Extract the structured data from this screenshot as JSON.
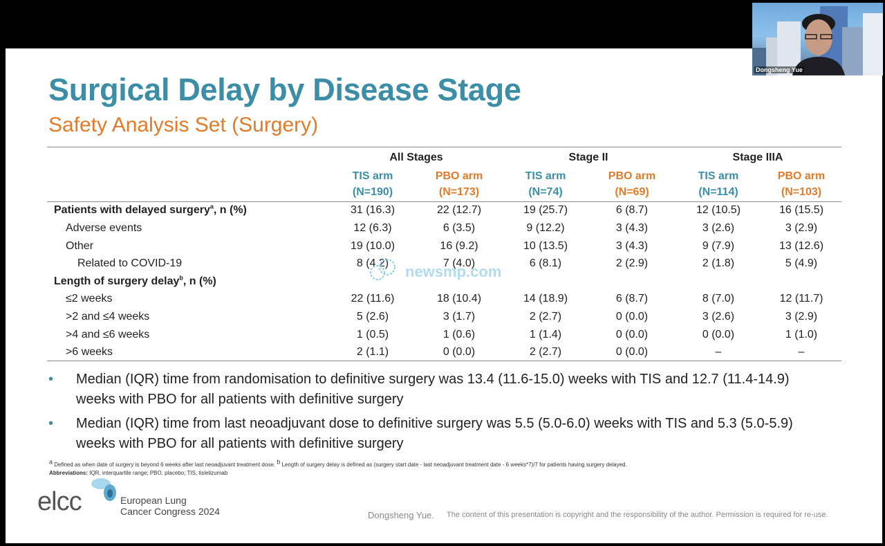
{
  "slide": {
    "title": "Surgical Delay by Disease Stage",
    "subtitle": "Safety Analysis Set (Surgery)"
  },
  "table": {
    "groups": [
      "All Stages",
      "Stage II",
      "Stage IIIA"
    ],
    "arms": [
      {
        "name": "TIS arm",
        "n": "(N=190)"
      },
      {
        "name": "PBO arm",
        "n": "(N=173)"
      },
      {
        "name": "TIS arm",
        "n": "(N=74)"
      },
      {
        "name": "PBO arm",
        "n": "(N=69)"
      },
      {
        "name": "TIS arm",
        "n": "(N=114)"
      },
      {
        "name": "PBO arm",
        "n": "(N=103)"
      }
    ],
    "rows": [
      {
        "label": "Patients with delayed surgery",
        "sup": "a",
        "suffix": ", n (%)",
        "values": [
          "31 (16.3)",
          "22 (12.7)",
          "19 (25.7)",
          "6 (8.7)",
          "12 (10.5)",
          "16 (15.5)"
        ]
      },
      {
        "label": "Adverse events",
        "values": [
          "12 (6.3)",
          "6 (3.5)",
          "9 (12.2)",
          "3 (4.3)",
          "3 (2.6)",
          "3 (2.9)"
        ]
      },
      {
        "label": "Other",
        "values": [
          "19 (10.0)",
          "16 (9.2)",
          "10 (13.5)",
          "3 (4.3)",
          "9 (7.9)",
          "13 (12.6)"
        ]
      },
      {
        "label": "Related to COVID-19",
        "values": [
          "8 (4.2)",
          "7 (4.0)",
          "6 (8.1)",
          "2 (2.9)",
          "2 (1.8)",
          "5 (4.9)"
        ]
      },
      {
        "label": "Length of surgery delay",
        "sup": "b",
        "suffix": ", n (%)"
      },
      {
        "label": "≤2 weeks",
        "values": [
          "22 (11.6)",
          "18 (10.4)",
          "14 (18.9)",
          "6 (8.7)",
          "8 (7.0)",
          "12 (11.7)"
        ]
      },
      {
        "label": ">2 and ≤4 weeks",
        "values": [
          "5 (2.6)",
          "3 (1.7)",
          "2 (2.7)",
          "0 (0.0)",
          "3 (2.6)",
          "3 (2.9)"
        ]
      },
      {
        "label": ">4 and ≤6 weeks",
        "values": [
          "1 (0.5)",
          "1 (0.6)",
          "1 (1.4)",
          "0 (0.0)",
          "0 (0.0)",
          "1 (1.0)"
        ]
      },
      {
        "label": ">6 weeks",
        "values": [
          "2 (1.1)",
          "0 (0.0)",
          "2 (2.7)",
          "0 (0.0)",
          "–",
          "–"
        ]
      }
    ]
  },
  "bullets": [
    "Median (IQR) time from randomisation to definitive surgery was 13.4 (11.6-15.0) weeks with TIS and 12.7 (11.4-14.9) weeks with PBO for all patients with definitive surgery",
    "Median (IQR) time from last neoadjuvant dose to definitive surgery was 5.5 (5.0-6.0) weeks with TIS and 5.3 (5.0-5.9) weeks with PBO for all patients with definitive surgery"
  ],
  "footnotes": {
    "a_mark": "a",
    "a": " Defined as when date of surgery is beyond 6 weeks after last neoadjuvant treatment dose. ",
    "b_mark": "b",
    "b": " Length of surgery delay is defined as (surgery start date - last neoadjuvant treatment date - 6 weeks*7)/7 for patients having surgery delayed.",
    "abbr_label": "Abbreviations:",
    "abbr": " IQR, interquartile range; PBO, placebo; TIS, tislelizumab"
  },
  "branding": {
    "logo_text": "elcc",
    "congress_line1": "European Lung",
    "congress_line2": "Cancer Congress 2024",
    "presenter": "Dongsheng Yue.",
    "copyright": "The content of this presentation is copyright and the responsibility of the author. Permission is required for re-use."
  },
  "watermark": "newsmp.com",
  "webcam": {
    "participant_name": "Dongsheng Yue"
  },
  "colors": {
    "title": "#3b8ea5",
    "subtitle": "#e07b2a",
    "tis": "#3b8ea5",
    "pbo": "#e07b2a"
  }
}
